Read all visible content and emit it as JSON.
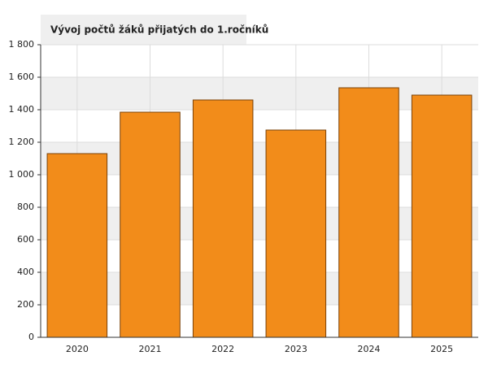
{
  "chart_data": {
    "type": "bar",
    "title": "Vývoj počtů žáků přijatých do 1.ročníků",
    "categories": [
      "2020",
      "2021",
      "2022",
      "2023",
      "2024",
      "2025"
    ],
    "values": [
      1130,
      1385,
      1460,
      1275,
      1535,
      1490
    ],
    "color": "#f28c1a",
    "ylim": [
      0,
      1800
    ],
    "yticks": [
      0,
      200,
      400,
      600,
      800,
      {
        "value": 1000,
        "label": "1 000"
      },
      {
        "value": 1200,
        "label": "1 200"
      },
      {
        "value": 1400,
        "label": "1 400"
      },
      {
        "value": 1600,
        "label": "1 600"
      },
      {
        "value": 1800,
        "label": "1 800"
      }
    ],
    "grid": true
  }
}
